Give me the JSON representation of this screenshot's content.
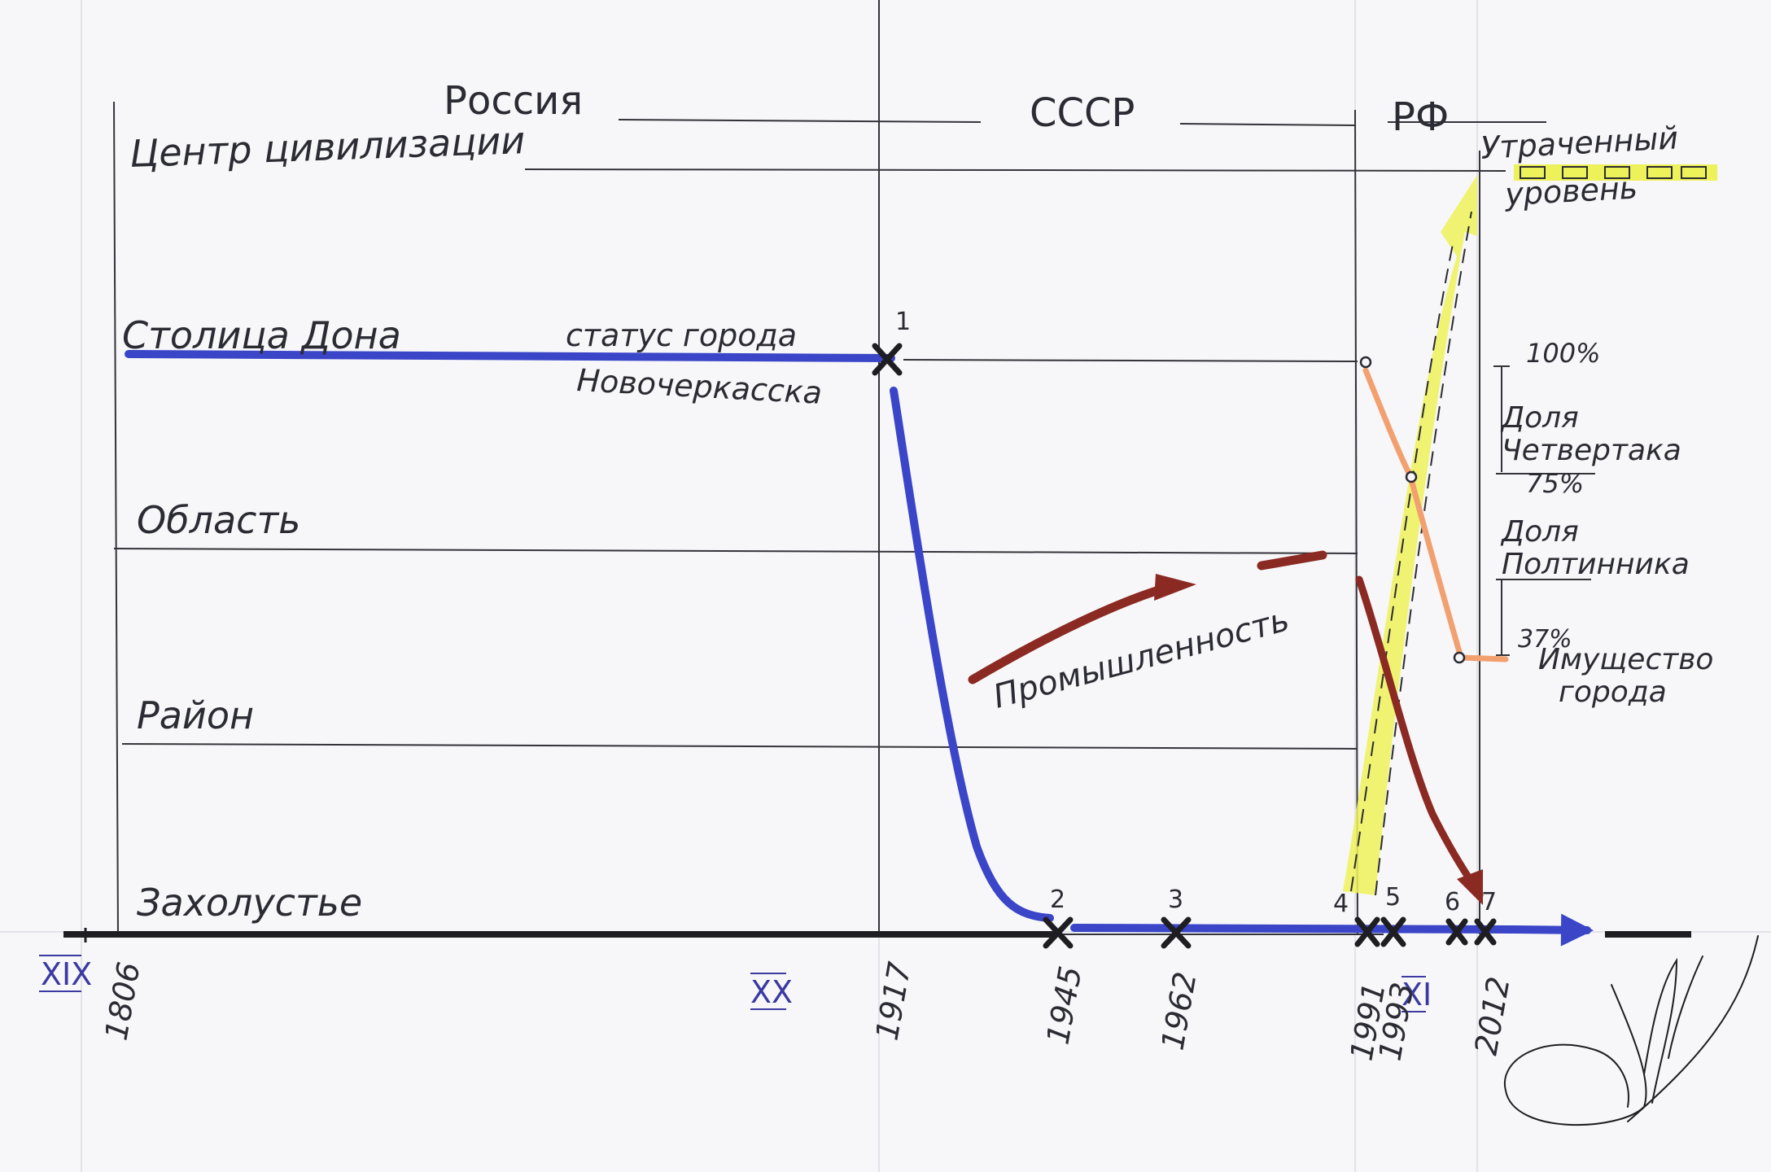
{
  "eras": {
    "russia": "Россия",
    "ussr": "СССР",
    "rf": "РФ"
  },
  "levels": {
    "center": "Центр цивилизации",
    "capital": "Столица Дона",
    "oblast": "Область",
    "raion": "Район",
    "backwater": "Захолустье"
  },
  "annotations": {
    "status_line1": "статус города",
    "status_line2": "Новочеркасска",
    "industry": "Промышленность",
    "lost_line1": "Утраченный",
    "lost_line2": "уровень",
    "pct100": "100%",
    "chetvertak_line1": "Доля",
    "chetvertak_line2": "Четвертака",
    "pct75": "75%",
    "poltinnik_line1": "Доля",
    "poltinnik_line2": "Полтинника",
    "pct37": "37%",
    "property_line1": "Имущество",
    "property_line2": "города"
  },
  "centuries": {
    "c19": "XIX",
    "c20": "XX",
    "c21": "XI"
  },
  "years": [
    "1806",
    "1917",
    "1945",
    "1962",
    "1991",
    "1993",
    "2012"
  ],
  "event_numbers": [
    "1",
    "2",
    "3",
    "4",
    "5",
    "6",
    "7"
  ],
  "colors": {
    "status": "#3a45c8",
    "industry": "#8b2a22",
    "lost_level": "#eef25a",
    "shares": "#f2a070",
    "ink": "#2b2b33",
    "roman": "#3a3aa0"
  },
  "icons": {
    "event_marker": "x-mark-icon",
    "signature": "signature-icon"
  }
}
